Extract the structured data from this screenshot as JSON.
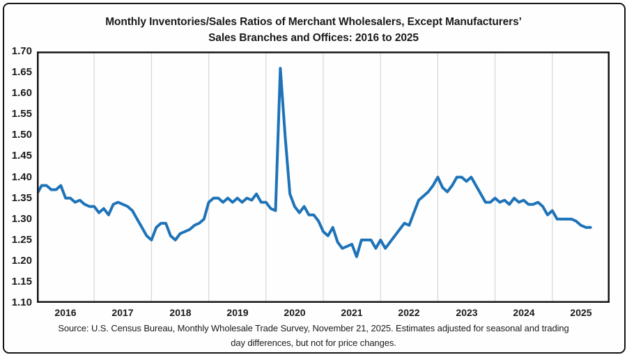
{
  "chart": {
    "title_line1": "Monthly Inventories/Sales Ratios of Merchant Wholesalers, Except Manufacturers’",
    "title_line2": "Sales Branches and Offices: 2016 to 2025",
    "source_line1": "Source: U.S. Census Bureau, Monthly Wholesale Trade Survey, November 21, 2025. Estimates adjusted for seasonal and trading",
    "source_line2": "day differences, but not for price changes.",
    "line_color": "#1E73B8",
    "gridline_color": "#d9d9d9",
    "border_color": "#141414",
    "text_color": "#1a1a1a"
  },
  "chart_data": {
    "type": "line",
    "title": "Monthly Inventories/Sales Ratios of Merchant Wholesalers, Except Manufacturers’ Sales Branches and Offices: 2016 to 2025",
    "xlabel": "",
    "ylabel": "",
    "ylim": [
      1.1,
      1.7
    ],
    "y_ticks": [
      1.1,
      1.15,
      1.2,
      1.25,
      1.3,
      1.35,
      1.4,
      1.45,
      1.5,
      1.55,
      1.6,
      1.65,
      1.7
    ],
    "x_tick_labels": [
      "2016",
      "2017",
      "2018",
      "2019",
      "2020",
      "2021",
      "2022",
      "2023",
      "2024",
      "2025"
    ],
    "grid": "vertical year gridlines only",
    "legend_position": "none",
    "x_start_month": "2016-01",
    "x_end_month": "2025-09",
    "series": [
      {
        "name": "Inventories/Sales Ratio",
        "values_by_year": [
          {
            "year": 2016,
            "values": [
              1.36,
              1.38,
              1.38,
              1.37,
              1.37,
              1.38,
              1.35,
              1.35,
              1.34,
              1.345,
              1.335,
              1.33
            ]
          },
          {
            "year": 2017,
            "values": [
              1.33,
              1.315,
              1.325,
              1.31,
              1.335,
              1.34,
              1.335,
              1.33,
              1.32,
              1.3,
              1.28,
              1.26
            ]
          },
          {
            "year": 2018,
            "values": [
              1.25,
              1.28,
              1.29,
              1.29,
              1.26,
              1.25,
              1.265,
              1.27,
              1.275,
              1.285,
              1.29,
              1.3
            ]
          },
          {
            "year": 2019,
            "values": [
              1.34,
              1.35,
              1.35,
              1.34,
              1.35,
              1.34,
              1.35,
              1.34,
              1.35,
              1.345,
              1.36,
              1.34
            ]
          },
          {
            "year": 2020,
            "values": [
              1.34,
              1.325,
              1.32,
              1.66,
              1.5,
              1.36,
              1.33,
              1.315,
              1.33,
              1.31,
              1.31,
              1.295
            ]
          },
          {
            "year": 2021,
            "values": [
              1.27,
              1.26,
              1.28,
              1.245,
              1.23,
              1.235,
              1.24,
              1.21,
              1.25,
              1.25,
              1.25,
              1.23
            ]
          },
          {
            "year": 2022,
            "values": [
              1.25,
              1.23,
              1.245,
              1.26,
              1.275,
              1.29,
              1.285,
              1.315,
              1.345,
              1.355,
              1.365,
              1.38
            ]
          },
          {
            "year": 2023,
            "values": [
              1.4,
              1.375,
              1.365,
              1.38,
              1.4,
              1.4,
              1.39,
              1.4,
              1.38,
              1.36,
              1.34,
              1.34
            ]
          },
          {
            "year": 2024,
            "values": [
              1.35,
              1.34,
              1.345,
              1.335,
              1.35,
              1.34,
              1.345,
              1.335,
              1.335,
              1.34,
              1.33,
              1.31
            ]
          },
          {
            "year": 2025,
            "values": [
              1.32,
              1.3,
              1.3,
              1.3,
              1.3,
              1.295,
              1.285,
              1.28,
              1.28
            ]
          }
        ]
      }
    ]
  }
}
